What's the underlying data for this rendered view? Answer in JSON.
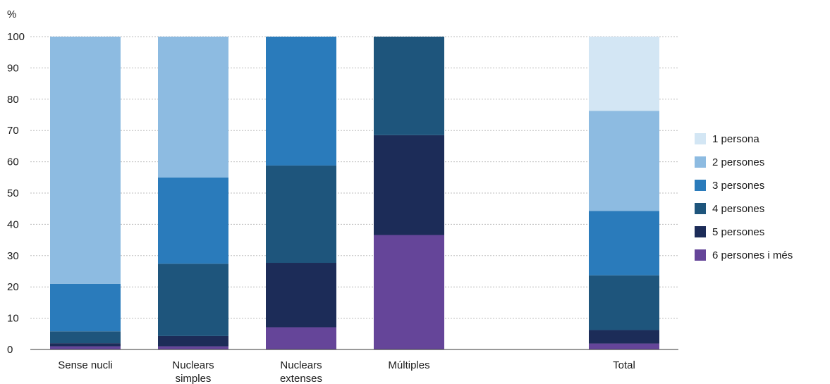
{
  "chart_data": {
    "type": "bar",
    "stacked": true,
    "unit_label": "%",
    "title": "",
    "xlabel": "",
    "ylabel": "%",
    "ylim": [
      0,
      100
    ],
    "yticks": [
      0,
      10,
      20,
      30,
      40,
      50,
      60,
      70,
      80,
      90,
      100
    ],
    "grid": true,
    "legend_position": "right",
    "categories": [
      [
        "Sense nucli"
      ],
      [
        "Nuclears",
        "simples"
      ],
      [
        "Nuclears",
        "extenses"
      ],
      [
        "Múltiples"
      ],
      [
        "Total"
      ]
    ],
    "series": [
      {
        "name": "6 persones i més",
        "color": "#654599",
        "values": [
          1.0,
          1.0,
          7.1,
          36.6,
          1.9
        ]
      },
      {
        "name": "5 persones",
        "color": "#1c2c58",
        "values": [
          1.0,
          3.3,
          20.6,
          31.9,
          4.3
        ]
      },
      {
        "name": "4 persones",
        "color": "#1e557c",
        "values": [
          3.8,
          23.1,
          31.1,
          31.5,
          17.5
        ]
      },
      {
        "name": "3 persones",
        "color": "#2a7bbb",
        "values": [
          15.2,
          27.6,
          41.2,
          0,
          20.6
        ]
      },
      {
        "name": "2 persones",
        "color": "#8dbbe1",
        "values": [
          79.0,
          45.0,
          0,
          0,
          32.0
        ]
      },
      {
        "name": "1 persona",
        "color": "#d3e6f4",
        "values": [
          0,
          0,
          0,
          0,
          23.7
        ]
      }
    ],
    "legend_order": [
      "1 persona",
      "2 persones",
      "3 persones",
      "4 persones",
      "5 persones",
      "6 persones i més"
    ]
  }
}
